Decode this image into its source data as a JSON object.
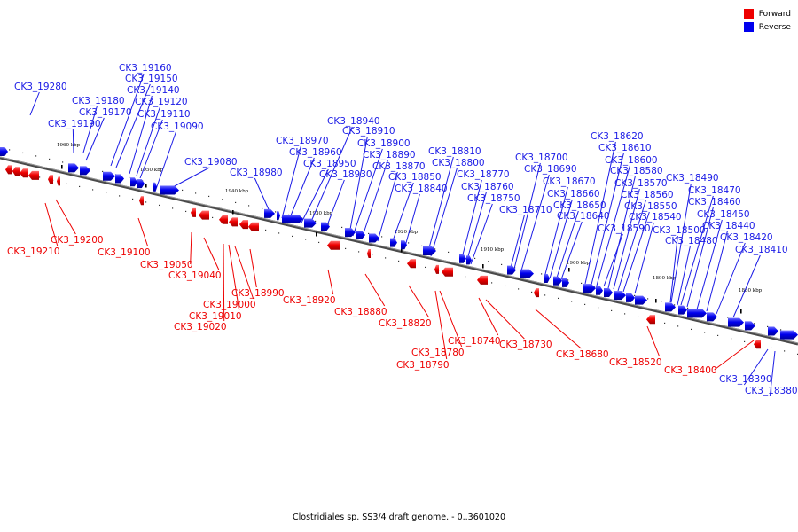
{
  "caption": "Clostridiales sp. SS3/4 draft genome. - 0..3601020",
  "legend": {
    "forward_label": "Forward",
    "reverse_label": "Reverse",
    "forward_color": "#ee0000",
    "reverse_color": "#0000ee"
  },
  "scale_ticks": [
    {
      "label": "1960 kbp"
    },
    {
      "label": "1950 kbp"
    },
    {
      "label": "1940 kbp"
    },
    {
      "label": "1930 kbp"
    },
    {
      "label": "1920 kbp"
    },
    {
      "label": "1910 kbp"
    },
    {
      "label": "1900 kbp"
    },
    {
      "label": "1890 kbp"
    },
    {
      "label": "1880 kbp"
    }
  ],
  "reverse_genes": [
    "CK3_19280",
    "CK3_19190",
    "CK3_19180",
    "CK3_19170",
    "CK3_19160",
    "CK3_19150",
    "CK3_19140",
    "CK3_19120",
    "CK3_19110",
    "CK3_19090",
    "CK3_19080",
    "CK3_18980",
    "CK3_18970",
    "CK3_18960",
    "CK3_18950",
    "CK3_18940",
    "CK3_18930",
    "CK3_18910",
    "CK3_18900",
    "CK3_18890",
    "CK3_18870",
    "CK3_18850",
    "CK3_18840",
    "CK3_18810",
    "CK3_18800",
    "CK3_18770",
    "CK3_18760",
    "CK3_18750",
    "CK3_18710",
    "CK3_18700",
    "CK3_18690",
    "CK3_18670",
    "CK3_18660",
    "CK3_18650",
    "CK3_18640",
    "CK3_18620",
    "CK3_18610",
    "CK3_18600",
    "CK3_18590",
    "CK3_18580",
    "CK3_18570",
    "CK3_18560",
    "CK3_18550",
    "CK3_18540",
    "CK3_18500",
    "CK3_18490",
    "CK3_18480",
    "CK3_18470",
    "CK3_18460",
    "CK3_18450",
    "CK3_18440",
    "CK3_18420",
    "CK3_18410",
    "CK3_18390",
    "CK3_18380"
  ],
  "forward_genes": [
    "CK3_19210",
    "CK3_19200",
    "CK3_19100",
    "CK3_19050",
    "CK3_19040",
    "CK3_19020",
    "CK3_19010",
    "CK3_19000",
    "CK3_18990",
    "CK3_18920",
    "CK3_18880",
    "CK3_18820",
    "CK3_18790",
    "CK3_18780",
    "CK3_18740",
    "CK3_18730",
    "CK3_18680",
    "CK3_18520",
    "CK3_18400"
  ]
}
